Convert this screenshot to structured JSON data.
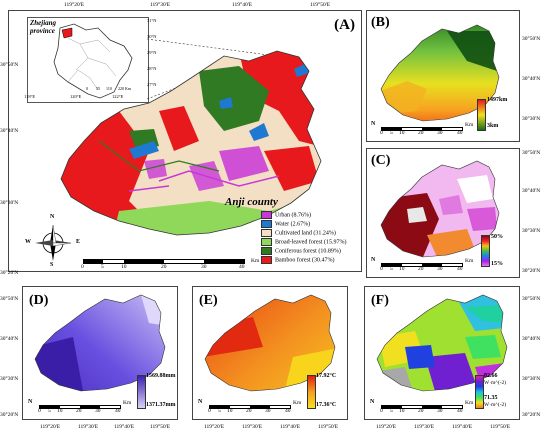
{
  "panelA": {
    "label": "(A)",
    "county": "Anji county",
    "province": "Zhejiang\nprovince",
    "inset_lon_ticks": [
      "118°E",
      "120°E",
      "122°E"
    ],
    "inset_lat_ticks": [
      "31°N",
      "30°N",
      "29°N",
      "28°N",
      "27°N"
    ],
    "inset_scale": [
      "0",
      "55",
      "110",
      "220 Km"
    ],
    "lon_ticks": [
      "119°20'E",
      "119°30'E",
      "119°40'E",
      "119°50'E"
    ],
    "lat_ticks": [
      "30°50'N",
      "30°40'N",
      "30°30'N",
      "30°20'N"
    ],
    "scale": [
      "0",
      "5",
      "10",
      "20",
      "30",
      "40",
      "Km"
    ],
    "compass": {
      "N": "N",
      "S": "S",
      "E": "E",
      "W": "W"
    },
    "legend": [
      {
        "label": "Urban (8.76%)",
        "color": "#c837d8"
      },
      {
        "label": "Water (2.67%)",
        "color": "#1f78d1"
      },
      {
        "label": "Cultivated land (31.24%)",
        "color": "#f3dfc3"
      },
      {
        "label": "Broad-leaved forest (15.97%)",
        "color": "#8fd85a"
      },
      {
        "label": "Coniferous forest (10.89%)",
        "color": "#2f7a23"
      },
      {
        "label": "Bamboo forest (30.47%)",
        "color": "#e8191c"
      }
    ]
  },
  "panelB": {
    "label": "(B)",
    "max": "1497km",
    "min": "3km",
    "lat_ticks": [
      "30°50'N",
      "30°40'N",
      "30°30'N"
    ],
    "scale": [
      "0",
      "5",
      "10",
      "20",
      "30",
      "40"
    ],
    "km": "Km",
    "north": "N"
  },
  "panelC": {
    "label": "(C)",
    "max": "50%",
    "min": "15%",
    "lat_ticks": [
      "30°50'N",
      "30°40'N",
      "30°30'N",
      "30°20'N"
    ],
    "scale": [
      "0",
      "5",
      "10",
      "20",
      "30",
      "40"
    ],
    "km": "Km",
    "north": "N"
  },
  "panelD": {
    "label": "(D)",
    "max": "1569.88mm",
    "min": "1371.37mm",
    "lat_ticks": [
      "30°50'N",
      "30°40'N",
      "30°30'N",
      "30°20'N"
    ],
    "lon_ticks": [
      "119°20'E",
      "119°30'E",
      "119°40'E",
      "119°50'E"
    ],
    "scale": [
      "0",
      "5",
      "10",
      "20",
      "30",
      "40"
    ],
    "km": "Km",
    "north": "N"
  },
  "panelE": {
    "label": "(E)",
    "max": "17.92°C",
    "min": "17.36°C",
    "lon_ticks": [
      "119°20'E",
      "119°30'E",
      "119°40'E",
      "119°50'E"
    ],
    "scale": [
      "0",
      "5",
      "10",
      "20",
      "30",
      "40"
    ],
    "km": "Km",
    "north": "N"
  },
  "panelF": {
    "label": "(F)",
    "max": "82.66",
    "max_unit": "W·m^(-2)",
    "min": "71.35",
    "min_unit": "W·m^(-2)",
    "lat_ticks": [
      "30°50'N",
      "30°40'N",
      "30°30'N",
      "30°20'N"
    ],
    "lon_ticks": [
      "119°20'E",
      "119°30'E",
      "119°40'E",
      "119°50'E"
    ],
    "scale": [
      "0",
      "5",
      "10",
      "20",
      "30",
      "40"
    ],
    "km": "Km",
    "north": "N"
  }
}
